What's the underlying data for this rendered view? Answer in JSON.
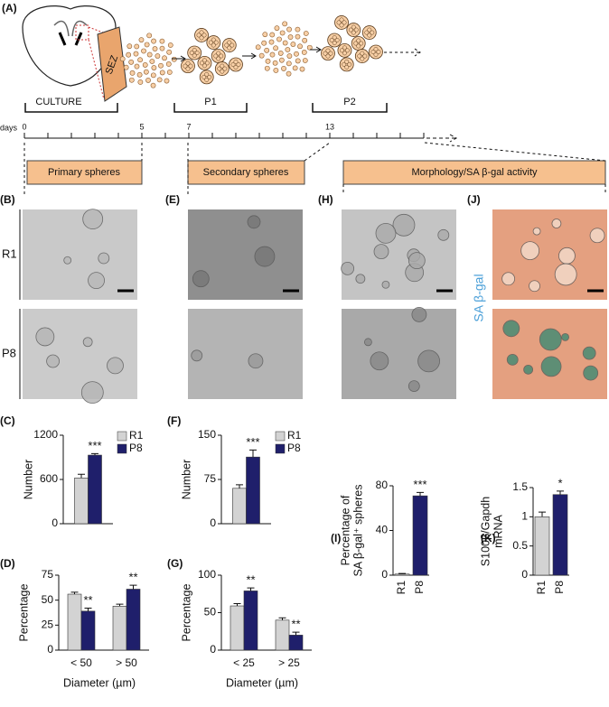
{
  "figure": {
    "panel_a": "(A)",
    "schematic": {
      "region": "SEZ",
      "stages": [
        "CULTURE",
        "P1",
        "P2"
      ],
      "days_label": "days",
      "days": [
        0,
        5,
        7,
        13
      ],
      "boxes": [
        "Primary spheres",
        "Secondary spheres",
        "Morphology/SA β-gal activity"
      ]
    },
    "images": {
      "panels": [
        "(B)",
        "(E)",
        "(H)",
        "(J)"
      ],
      "rows": [
        "R1",
        "P8"
      ],
      "stain_label": "SA β-gal"
    }
  },
  "chart_data": [
    {
      "type": "bar",
      "panel": "(C)",
      "ylabel": "Number",
      "categories": [
        null
      ],
      "series": [
        {
          "name": "R1",
          "color": "#d3d3d3",
          "values": [
            620
          ],
          "errors": [
            50
          ]
        },
        {
          "name": "P8",
          "color": "#1f1f6b",
          "values": [
            930
          ],
          "errors": [
            20
          ]
        }
      ],
      "annotations": [
        "***"
      ],
      "ylim": [
        0,
        1200
      ],
      "yticks": [
        0,
        600,
        1200
      ],
      "legend": "top-right"
    },
    {
      "type": "bar",
      "panel": "(D)",
      "ylabel": "Percentage",
      "xlabel": "Diameter (µm)",
      "categories": [
        "< 50",
        "> 50"
      ],
      "series": [
        {
          "name": "R1",
          "color": "#d3d3d3",
          "values": [
            56,
            44
          ],
          "errors": [
            2,
            2
          ]
        },
        {
          "name": "P8",
          "color": "#1f1f6b",
          "values": [
            39,
            61
          ],
          "errors": [
            3,
            4
          ]
        }
      ],
      "annotations": [
        "**",
        "**"
      ],
      "ylim": [
        0,
        75
      ],
      "yticks": [
        0,
        25,
        50,
        75
      ]
    },
    {
      "type": "bar",
      "panel": "(F)",
      "ylabel": "Number",
      "categories": [
        null
      ],
      "series": [
        {
          "name": "R1",
          "color": "#d3d3d3",
          "values": [
            60
          ],
          "errors": [
            6
          ]
        },
        {
          "name": "P8",
          "color": "#1f1f6b",
          "values": [
            113
          ],
          "errors": [
            12
          ]
        }
      ],
      "annotations": [
        "***"
      ],
      "ylim": [
        0,
        150
      ],
      "yticks": [
        0,
        75,
        150
      ],
      "legend": "top-right"
    },
    {
      "type": "bar",
      "panel": "(G)",
      "ylabel": "Percentage",
      "xlabel": "Diameter (µm)",
      "categories": [
        "< 25",
        "> 25"
      ],
      "series": [
        {
          "name": "R1",
          "color": "#d3d3d3",
          "values": [
            59,
            40
          ],
          "errors": [
            3,
            3
          ]
        },
        {
          "name": "P8",
          "color": "#1f1f6b",
          "values": [
            79,
            20
          ],
          "errors": [
            4,
            4
          ]
        }
      ],
      "annotations": [
        "**",
        "**"
      ],
      "ylim": [
        0,
        100
      ],
      "yticks": [
        0,
        50,
        100
      ]
    },
    {
      "type": "bar",
      "panel": "(I)",
      "ylabel": [
        "Percentage of",
        "SA β-gal⁺ spheres"
      ],
      "categories": [
        "R1",
        "P8"
      ],
      "values": [
        1,
        71
      ],
      "errors": [
        0.5,
        3
      ],
      "colors": [
        "#d3d3d3",
        "#1f1f6b"
      ],
      "annotations": [
        null,
        "***"
      ],
      "ylim": [
        0,
        80
      ],
      "yticks": [
        0,
        40,
        80
      ]
    },
    {
      "type": "bar",
      "panel": "(K)",
      "ylabel": [
        "S100β/Gapdh",
        "mRNA"
      ],
      "categories": [
        "R1",
        "P8"
      ],
      "values": [
        1.0,
        1.38
      ],
      "errors": [
        0.08,
        0.06
      ],
      "colors": [
        "#d3d3d3",
        "#1f1f6b"
      ],
      "annotations": [
        null,
        "*"
      ],
      "ylim": [
        0,
        1.5
      ],
      "yticks": [
        0,
        0.5,
        1,
        1.5
      ]
    }
  ]
}
